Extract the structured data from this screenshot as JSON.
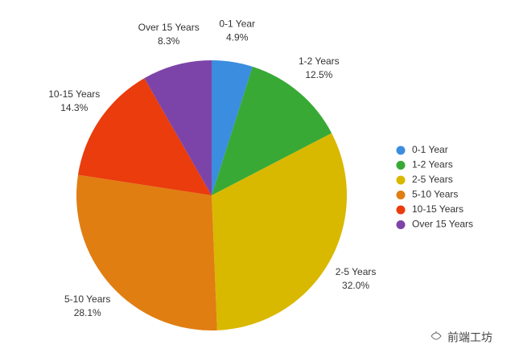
{
  "chart_data": {
    "type": "pie",
    "categories": [
      "0-1 Year",
      "1-2 Years",
      "2-5 Years",
      "5-10 Years",
      "10-15 Years",
      "Over 15 Years"
    ],
    "values": [
      4.9,
      12.5,
      32.0,
      28.1,
      14.3,
      8.3
    ],
    "value_labels": [
      "4.9%",
      "12.5%",
      "32.0%",
      "28.1%",
      "14.3%",
      "8.3%"
    ],
    "colors": [
      "#3b8de0",
      "#39a935",
      "#d9b800",
      "#e07e12",
      "#ea3c0c",
      "#7c44a8"
    ],
    "legend": "right"
  },
  "watermark": "前端工坊"
}
